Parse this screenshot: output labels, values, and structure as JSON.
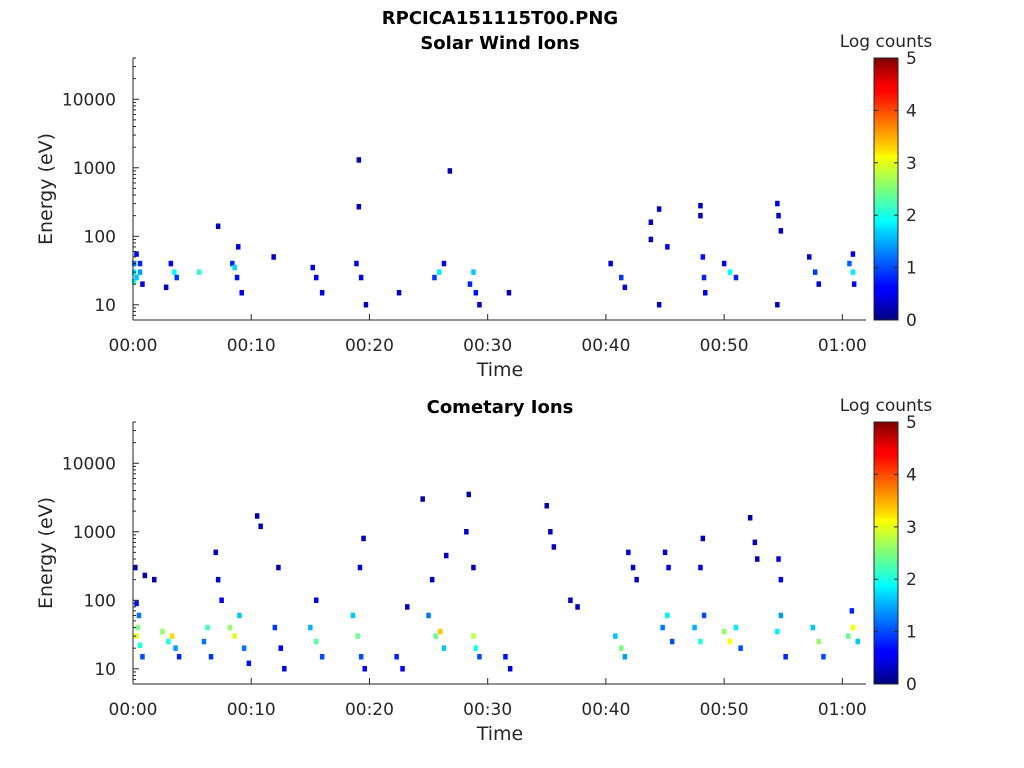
{
  "figure_title": "RPCICA151115T00.PNG",
  "chart_data": [
    {
      "type": "heatmap",
      "title": "Solar Wind Ions",
      "xlabel": "Time",
      "ylabel": "Energy (eV)",
      "y_scale": "log",
      "ylim": [
        6,
        40000
      ],
      "y_ticks": [
        10,
        100,
        1000,
        10000
      ],
      "y_tick_labels": [
        "10",
        "100",
        "1000",
        "10000"
      ],
      "x_unit": "minutes",
      "xlim": [
        0,
        62
      ],
      "x_ticks": [
        0,
        10,
        20,
        30,
        40,
        50,
        60
      ],
      "x_tick_labels": [
        "00:00",
        "00:10",
        "00:20",
        "00:30",
        "00:40",
        "00:50",
        "01:00"
      ],
      "colorbar": {
        "label": "Log counts",
        "range": [
          0,
          5
        ],
        "ticks": [
          "0",
          "1",
          "2",
          "3",
          "4",
          "5"
        ],
        "colormap": "jet"
      },
      "cells": [
        [
          0.1,
          30,
          1.8
        ],
        [
          0.1,
          40,
          1.2
        ],
        [
          0.1,
          22,
          2.0
        ],
        [
          0.3,
          55,
          0.6
        ],
        [
          0.3,
          25,
          1.6
        ],
        [
          0.6,
          40,
          0.8
        ],
        [
          0.6,
          30,
          1.4
        ],
        [
          0.8,
          20,
          0.5
        ],
        [
          2.8,
          18,
          0.4
        ],
        [
          3.2,
          40,
          0.6
        ],
        [
          3.5,
          30,
          1.9
        ],
        [
          3.7,
          25,
          0.9
        ],
        [
          5.6,
          30,
          2.1
        ],
        [
          7.2,
          140,
          0.3
        ],
        [
          8.4,
          40,
          0.8
        ],
        [
          8.6,
          35,
          1.7
        ],
        [
          8.8,
          25,
          0.7
        ],
        [
          8.9,
          70,
          0.5
        ],
        [
          9.2,
          15,
          0.6
        ],
        [
          11.9,
          50,
          0.3
        ],
        [
          15.2,
          35,
          0.5
        ],
        [
          15.5,
          25,
          0.6
        ],
        [
          16.0,
          15,
          0.5
        ],
        [
          18.9,
          40,
          0.5
        ],
        [
          19.1,
          1300,
          0.2
        ],
        [
          19.1,
          270,
          0.3
        ],
        [
          19.3,
          25,
          0.6
        ],
        [
          19.7,
          10,
          0.3
        ],
        [
          22.5,
          15,
          0.4
        ],
        [
          25.5,
          25,
          0.9
        ],
        [
          25.9,
          30,
          1.8
        ],
        [
          26.3,
          40,
          0.6
        ],
        [
          26.8,
          900,
          0.2
        ],
        [
          28.5,
          20,
          0.8
        ],
        [
          28.8,
          30,
          1.6
        ],
        [
          29.0,
          15,
          0.7
        ],
        [
          29.3,
          10,
          0.4
        ],
        [
          31.8,
          15,
          0.3
        ],
        [
          40.4,
          40,
          0.4
        ],
        [
          41.3,
          25,
          0.9
        ],
        [
          41.6,
          18,
          0.5
        ],
        [
          43.8,
          160,
          0.3
        ],
        [
          43.8,
          90,
          0.3
        ],
        [
          44.5,
          250,
          0.3
        ],
        [
          44.5,
          10,
          0.3
        ],
        [
          45.2,
          70,
          0.5
        ],
        [
          48.0,
          280,
          0.3
        ],
        [
          48.0,
          200,
          0.3
        ],
        [
          48.2,
          50,
          0.7
        ],
        [
          48.3,
          25,
          0.8
        ],
        [
          48.4,
          15,
          0.5
        ],
        [
          50.0,
          40,
          0.5
        ],
        [
          50.5,
          30,
          1.9
        ],
        [
          51.0,
          25,
          0.8
        ],
        [
          54.5,
          300,
          0.5
        ],
        [
          54.6,
          200,
          0.4
        ],
        [
          54.8,
          120,
          0.3
        ],
        [
          54.5,
          10,
          0.3
        ],
        [
          57.2,
          50,
          0.4
        ],
        [
          57.7,
          30,
          0.9
        ],
        [
          58.0,
          20,
          0.5
        ],
        [
          60.6,
          40,
          1.1
        ],
        [
          60.9,
          30,
          1.8
        ],
        [
          61.0,
          20,
          0.6
        ],
        [
          60.9,
          55,
          0.4
        ]
      ]
    },
    {
      "type": "heatmap",
      "title": "Cometary Ions",
      "xlabel": "Time",
      "ylabel": "Energy (eV)",
      "y_scale": "log",
      "ylim": [
        6,
        40000
      ],
      "y_ticks": [
        10,
        100,
        1000,
        10000
      ],
      "y_tick_labels": [
        "10",
        "100",
        "1000",
        "10000"
      ],
      "x_unit": "minutes",
      "xlim": [
        0,
        62
      ],
      "x_ticks": [
        0,
        10,
        20,
        30,
        40,
        50,
        60
      ],
      "x_tick_labels": [
        "00:00",
        "00:10",
        "00:20",
        "00:30",
        "00:40",
        "00:50",
        "01:00"
      ],
      "colorbar": {
        "label": "Log counts",
        "range": [
          0,
          5
        ],
        "ticks": [
          "0",
          "1",
          "2",
          "3",
          "4",
          "5"
        ],
        "colormap": "jet"
      },
      "cells": [
        [
          0.3,
          30,
          3.0
        ],
        [
          0.4,
          40,
          2.5
        ],
        [
          0.6,
          22,
          2.0
        ],
        [
          0.5,
          60,
          1.2
        ],
        [
          0.3,
          90,
          0.7
        ],
        [
          0.8,
          15,
          1.0
        ],
        [
          0.2,
          300,
          0.3
        ],
        [
          1.0,
          230,
          0.2
        ],
        [
          1.8,
          200,
          0.2
        ],
        [
          2.5,
          35,
          2.6
        ],
        [
          3.0,
          25,
          2.0
        ],
        [
          3.3,
          30,
          3.3
        ],
        [
          3.6,
          20,
          1.4
        ],
        [
          3.9,
          15,
          0.8
        ],
        [
          6.0,
          25,
          1.2
        ],
        [
          6.3,
          40,
          2.2
        ],
        [
          6.6,
          15,
          0.9
        ],
        [
          7.0,
          500,
          0.3
        ],
        [
          7.2,
          200,
          0.4
        ],
        [
          7.5,
          100,
          0.6
        ],
        [
          8.2,
          40,
          2.6
        ],
        [
          8.6,
          30,
          3.0
        ],
        [
          9.0,
          60,
          1.6
        ],
        [
          9.4,
          20,
          1.2
        ],
        [
          9.8,
          12,
          0.7
        ],
        [
          10.5,
          1700,
          0.2
        ],
        [
          10.8,
          1200,
          0.2
        ],
        [
          12.0,
          40,
          0.9
        ],
        [
          12.5,
          20,
          0.6
        ],
        [
          12.8,
          10,
          0.5
        ],
        [
          12.3,
          300,
          0.3
        ],
        [
          15.0,
          40,
          1.5
        ],
        [
          15.5,
          25,
          2.3
        ],
        [
          16.0,
          15,
          1.0
        ],
        [
          15.5,
          100,
          0.6
        ],
        [
          18.6,
          60,
          1.6
        ],
        [
          19.0,
          30,
          2.4
        ],
        [
          19.3,
          15,
          1.0
        ],
        [
          19.6,
          10,
          0.6
        ],
        [
          19.2,
          300,
          0.4
        ],
        [
          19.5,
          800,
          0.3
        ],
        [
          22.3,
          15,
          0.8
        ],
        [
          22.8,
          10,
          0.6
        ],
        [
          23.2,
          80,
          0.3
        ],
        [
          24.5,
          3000,
          0.2
        ],
        [
          25.0,
          60,
          1.2
        ],
        [
          25.6,
          30,
          2.4
        ],
        [
          26.0,
          35,
          3.4
        ],
        [
          26.3,
          20,
          1.6
        ],
        [
          26.5,
          450,
          0.4
        ],
        [
          25.3,
          200,
          0.4
        ],
        [
          28.4,
          3500,
          0.2
        ],
        [
          28.8,
          30,
          2.8
        ],
        [
          29.0,
          20,
          2.0
        ],
        [
          28.2,
          1000,
          0.3
        ],
        [
          28.8,
          300,
          0.3
        ],
        [
          29.3,
          15,
          1.0
        ],
        [
          31.5,
          15,
          0.7
        ],
        [
          31.9,
          10,
          0.5
        ],
        [
          35.0,
          2400,
          0.2
        ],
        [
          35.3,
          1000,
          0.3
        ],
        [
          35.6,
          600,
          0.3
        ],
        [
          37.0,
          100,
          0.3
        ],
        [
          37.6,
          80,
          0.3
        ],
        [
          40.8,
          30,
          1.6
        ],
        [
          41.3,
          20,
          2.5
        ],
        [
          41.6,
          15,
          1.4
        ],
        [
          41.9,
          500,
          0.4
        ],
        [
          42.3,
          300,
          0.4
        ],
        [
          42.6,
          200,
          0.3
        ],
        [
          44.8,
          40,
          1.2
        ],
        [
          45.2,
          60,
          1.8
        ],
        [
          45.6,
          25,
          1.0
        ],
        [
          45.3,
          300,
          0.6
        ],
        [
          45.0,
          500,
          0.4
        ],
        [
          47.5,
          40,
          1.5
        ],
        [
          48.0,
          25,
          2.0
        ],
        [
          48.3,
          60,
          1.0
        ],
        [
          48.2,
          800,
          0.3
        ],
        [
          48.0,
          300,
          0.5
        ],
        [
          50.0,
          35,
          2.6
        ],
        [
          50.5,
          25,
          3.1
        ],
        [
          51.0,
          40,
          1.8
        ],
        [
          51.4,
          20,
          1.0
        ],
        [
          52.2,
          1600,
          0.2
        ],
        [
          52.6,
          700,
          0.3
        ],
        [
          52.8,
          400,
          0.3
        ],
        [
          54.5,
          35,
          1.8
        ],
        [
          54.8,
          60,
          1.4
        ],
        [
          55.2,
          15,
          0.8
        ],
        [
          54.6,
          400,
          0.5
        ],
        [
          54.8,
          200,
          0.6
        ],
        [
          57.5,
          40,
          1.6
        ],
        [
          58.0,
          25,
          2.6
        ],
        [
          58.4,
          15,
          1.0
        ],
        [
          60.5,
          30,
          2.4
        ],
        [
          60.9,
          40,
          3.1
        ],
        [
          61.3,
          25,
          1.6
        ],
        [
          60.8,
          70,
          0.8
        ]
      ]
    }
  ]
}
